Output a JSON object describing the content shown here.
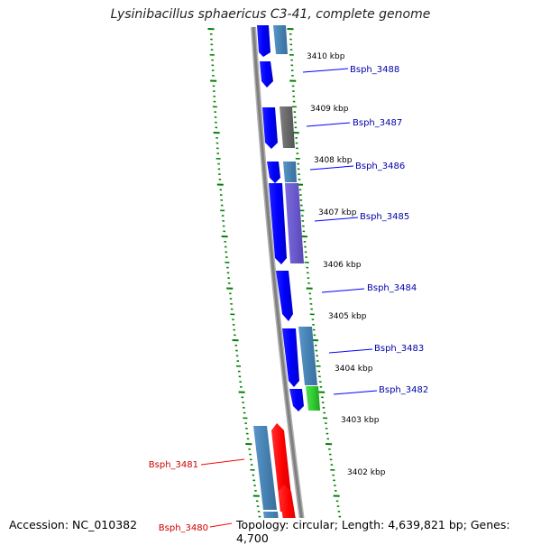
{
  "title": "Lysinibacillus sphaericus C3-41, complete genome",
  "footer": {
    "accession": "Accession: NC_010382",
    "info": "Topology: circular; Length: 4,639,821 bp; Genes: 4,700"
  },
  "kbp_labels": [
    "3410 kbp",
    "3409 kbp",
    "3408 kbp",
    "3407 kbp",
    "3406 kbp",
    "3405 kbp",
    "3404 kbp",
    "3403 kbp",
    "3402 kbp"
  ],
  "genes_forward": [
    "Bsph_3488",
    "Bsph_3487",
    "Bsph_3486",
    "Bsph_3485",
    "Bsph_3484",
    "Bsph_3483",
    "Bsph_3482"
  ],
  "genes_reverse": [
    "Bsph_3481",
    "Bsph_3480"
  ],
  "colors": {
    "forward_gene": "#0000ff",
    "reverse_gene": "#ff0000",
    "cog_steel": "#4682b4",
    "cog_gray": "#696969",
    "cog_purple": "#6a5acd",
    "cog_green": "#32cd32",
    "backbone": "#808080",
    "tick": "#008000"
  }
}
